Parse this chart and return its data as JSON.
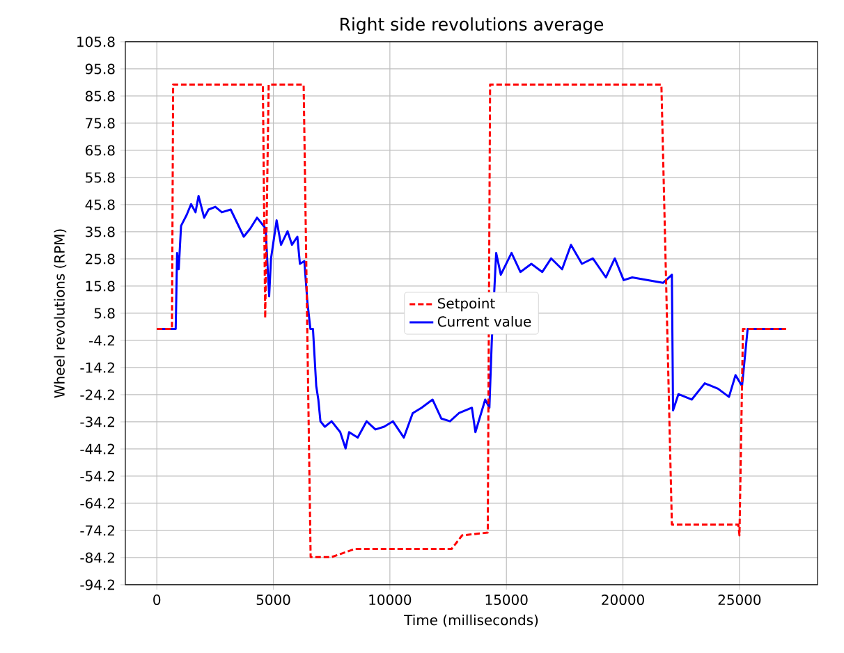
{
  "chart_data": {
    "type": "line",
    "title": "Right side revolutions average",
    "xlabel": "Time (milliseconds)",
    "ylabel": "Wheel revolutions (RPM)",
    "xlim": [
      -1350,
      28350
    ],
    "xticks": [
      0,
      5000,
      10000,
      15000,
      20000,
      25000
    ],
    "ylim": [
      -94.2,
      105.8
    ],
    "yticks": [
      -94.2,
      -84.2,
      -74.2,
      -64.2,
      -54.2,
      -44.2,
      -34.2,
      -24.2,
      -14.2,
      -4.2,
      5.8,
      15.8,
      25.8,
      35.8,
      45.8,
      55.8,
      65.8,
      75.8,
      85.8,
      95.8,
      105.8
    ],
    "grid": true,
    "legend": "center",
    "marker": "none",
    "series": [
      {
        "name": "Setpoint",
        "color": "#ff0000",
        "line_style": "dashed",
        "x": [
          0,
          650,
          700,
          4550,
          4650,
          4800,
          6300,
          6600,
          7500,
          8500,
          12650,
          13100,
          14200,
          14300,
          21650,
          22100,
          24950,
          25000,
          25150,
          27000
        ],
        "values": [
          0,
          0,
          90,
          90,
          4,
          90,
          90,
          -84,
          -84,
          -81,
          -81,
          -76,
          -75,
          90,
          90,
          -72,
          -72,
          -76,
          0,
          0
        ]
      },
      {
        "name": "Current value",
        "color": "#0000ff",
        "line_style": "solid",
        "x": [
          0,
          810,
          870,
          940,
          1040,
          1280,
          1470,
          1660,
          1790,
          2030,
          2220,
          2510,
          2790,
          3170,
          3450,
          3730,
          4010,
          4300,
          4670,
          4820,
          4900,
          5140,
          5330,
          5610,
          5800,
          6030,
          6140,
          6330,
          6460,
          6590,
          6700,
          6840,
          6930,
          7020,
          7210,
          7500,
          7870,
          8100,
          8250,
          8620,
          9000,
          9380,
          9750,
          10130,
          10600,
          10980,
          11360,
          11830,
          12210,
          12580,
          12960,
          13520,
          13670,
          14090,
          14270,
          14370,
          14560,
          14760,
          15220,
          15600,
          16070,
          16540,
          16920,
          17390,
          17770,
          18240,
          18710,
          19270,
          19650,
          20030,
          20400,
          21720,
          22100,
          22150,
          22380,
          22950,
          23510,
          24080,
          24550,
          24830,
          25110,
          25350,
          25580,
          26900
        ],
        "values": [
          0,
          0,
          28,
          22,
          38,
          42,
          46,
          43,
          49,
          41,
          44,
          45,
          43,
          44,
          39,
          34,
          37,
          41,
          37,
          12,
          26,
          40,
          31,
          36,
          31,
          34,
          24,
          25,
          10,
          0,
          0,
          -21,
          -26,
          -34,
          -36,
          -34,
          -38,
          -44,
          -38,
          -40,
          -34,
          -37,
          -36,
          -34,
          -40,
          -31,
          -29,
          -26,
          -33,
          -34,
          -31,
          -29,
          -38,
          -26,
          -29,
          -5,
          28,
          20,
          28,
          21,
          24,
          21,
          26,
          22,
          31,
          24,
          26,
          19,
          26,
          18,
          19,
          17,
          20,
          -30,
          -24,
          -26,
          -20,
          -22,
          -25,
          -17,
          -21,
          0,
          0,
          0
        ]
      }
    ]
  }
}
